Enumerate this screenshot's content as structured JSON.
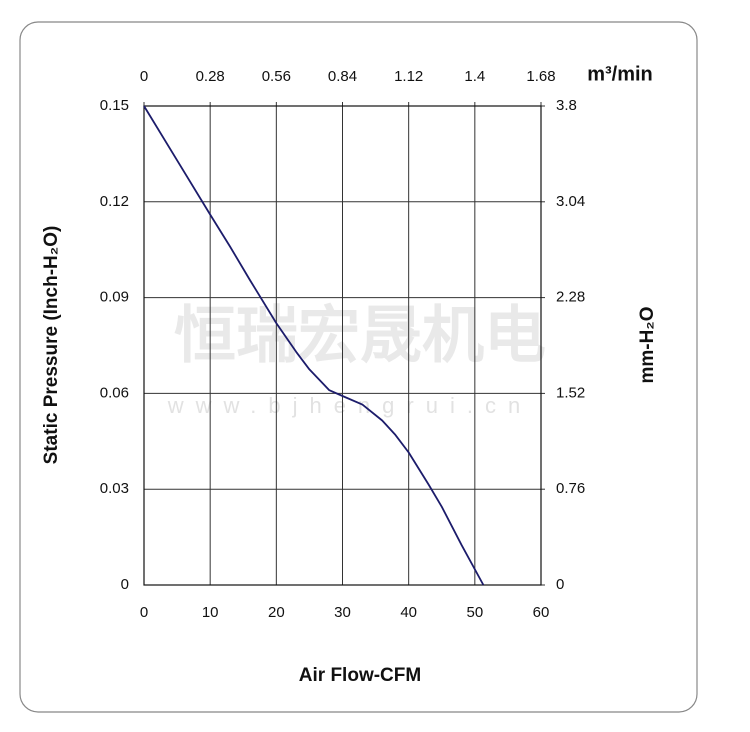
{
  "chart_data": {
    "type": "line",
    "xlabel": "Air Flow-CFM",
    "ylabel": "Static Pressure (Inch-H₂O)",
    "x2label": "m³/min",
    "y2label": "mm-H₂O",
    "annotations": [
      "恒瑞宏晟机电",
      "www.bjhengrui.cn"
    ],
    "x": [
      0,
      5,
      10,
      13,
      16,
      20,
      23,
      25,
      28,
      30,
      33,
      36,
      38,
      40,
      43,
      45,
      48,
      51.3
    ],
    "values": [
      0.15,
      0.133,
      0.116,
      0.106,
      0.0955,
      0.082,
      0.073,
      0.0675,
      0.061,
      0.0592,
      0.0565,
      0.0515,
      0.047,
      0.0415,
      0.0315,
      0.0245,
      0.0125,
      0
    ],
    "color": "#1c1c6b",
    "xlim": [
      0,
      60
    ],
    "xticks": [
      0,
      10,
      20,
      30,
      40,
      50,
      60
    ],
    "ylim": [
      0,
      0.15
    ],
    "yticks": [
      0,
      0.03,
      0.06,
      0.09,
      0.12,
      0.15
    ],
    "x2lim": [
      0,
      1.68
    ],
    "x2ticks": [
      0,
      0.28,
      0.56,
      0.84,
      1.12,
      1.4,
      1.68
    ],
    "y2lim": [
      0,
      3.8
    ],
    "y2ticks": [
      0,
      0.76,
      1.52,
      2.28,
      3.04,
      3.8
    ],
    "grid": true
  }
}
